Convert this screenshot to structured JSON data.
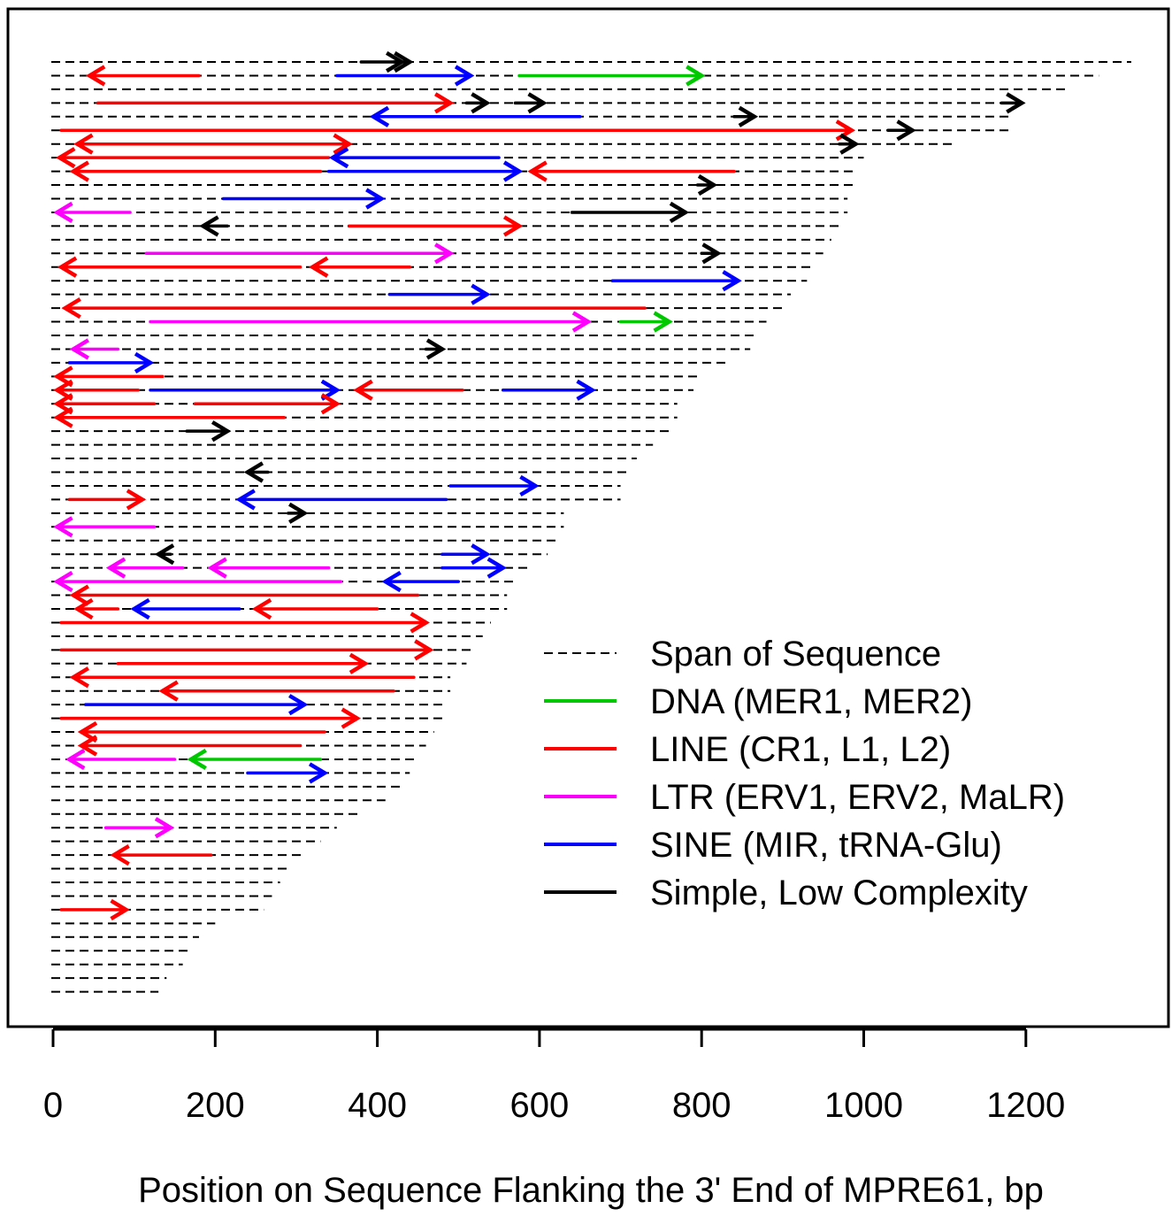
{
  "chart_data": {
    "type": "line",
    "title": "",
    "xlabel": "Position on Sequence Flanking the 3' End of MPRE61, bp",
    "ylabel": "",
    "xlim": [
      -5,
      1375
    ],
    "x_ticks": [
      0,
      200,
      400,
      600,
      800,
      1000,
      1200
    ],
    "grid": false,
    "legend_position": "right",
    "colors": {
      "DNA": "#00c800",
      "LINE": "#ff0000",
      "LTR": "#ff00ff",
      "SINE": "#0000ff",
      "Simple": "#000000",
      "span": "#000000"
    },
    "legend": [
      {
        "key": "span",
        "label": "Span of Sequence",
        "style": "dashed"
      },
      {
        "key": "DNA",
        "label": "DNA (MER1, MER2)",
        "style": "solid"
      },
      {
        "key": "LINE",
        "label": "LINE (CR1, L1, L2)",
        "style": "solid"
      },
      {
        "key": "LTR",
        "label": "LTR (ERV1, ERV2, MaLR)",
        "style": "solid"
      },
      {
        "key": "SINE",
        "label": "SINE (MIR, tRNA-Glu)",
        "style": "solid"
      },
      {
        "key": "Simple",
        "label": "Simple, Low Complexity",
        "style": "solid"
      }
    ],
    "spans": [
      1330,
      1290,
      1250,
      1200,
      1180,
      1180,
      1110,
      1000,
      990,
      990,
      980,
      980,
      970,
      960,
      950,
      940,
      930,
      910,
      900,
      880,
      870,
      860,
      830,
      800,
      790,
      770,
      770,
      760,
      740,
      720,
      710,
      700,
      700,
      630,
      630,
      620,
      610,
      590,
      570,
      560,
      560,
      540,
      530,
      520,
      510,
      490,
      490,
      480,
      480,
      470,
      460,
      450,
      440,
      430,
      410,
      380,
      350,
      330,
      310,
      290,
      280,
      270,
      260,
      200,
      180,
      170,
      160,
      140,
      130
    ],
    "elements": [
      {
        "row": 1,
        "class": "Simple",
        "start": 380,
        "end": 430,
        "dir": "+"
      },
      {
        "row": 1,
        "class": "Simple",
        "start": 420,
        "end": 440,
        "dir": "+"
      },
      {
        "row": 2,
        "class": "LINE",
        "start": 180,
        "end": 45,
        "dir": "-"
      },
      {
        "row": 2,
        "class": "SINE",
        "start": 350,
        "end": 515,
        "dir": "+"
      },
      {
        "row": 2,
        "class": "DNA",
        "start": 575,
        "end": 800,
        "dir": "+"
      },
      {
        "row": 4,
        "class": "LINE",
        "start": 55,
        "end": 490,
        "dir": "+"
      },
      {
        "row": 4,
        "class": "Simple",
        "start": 510,
        "end": 535,
        "dir": "+"
      },
      {
        "row": 4,
        "class": "Simple",
        "start": 570,
        "end": 605,
        "dir": "+"
      },
      {
        "row": 4,
        "class": "Simple",
        "start": 1170,
        "end": 1195,
        "dir": "+"
      },
      {
        "row": 5,
        "class": "SINE",
        "start": 650,
        "end": 395,
        "dir": "-"
      },
      {
        "row": 5,
        "class": "Simple",
        "start": 840,
        "end": 865,
        "dir": "+"
      },
      {
        "row": 6,
        "class": "LINE",
        "start": 10,
        "end": 985,
        "dir": "+"
      },
      {
        "row": 6,
        "class": "Simple",
        "start": 1030,
        "end": 1060,
        "dir": "+"
      },
      {
        "row": 7,
        "class": "LINE",
        "start": 290,
        "end": 30,
        "dir": "-"
      },
      {
        "row": 7,
        "class": "LINE",
        "start": 280,
        "end": 365,
        "dir": "+"
      },
      {
        "row": 7,
        "class": "Simple",
        "start": 970,
        "end": 990,
        "dir": "+"
      },
      {
        "row": 8,
        "class": "LINE",
        "start": 340,
        "end": 8,
        "dir": "-"
      },
      {
        "row": 8,
        "class": "SINE",
        "start": 550,
        "end": 345,
        "dir": "-"
      },
      {
        "row": 9,
        "class": "LINE",
        "start": 330,
        "end": 25,
        "dir": "-"
      },
      {
        "row": 9,
        "class": "SINE",
        "start": 340,
        "end": 575,
        "dir": "+"
      },
      {
        "row": 9,
        "class": "LINE",
        "start": 840,
        "end": 590,
        "dir": "-"
      },
      {
        "row": 10,
        "class": "Simple",
        "start": 795,
        "end": 815,
        "dir": "+"
      },
      {
        "row": 11,
        "class": "SINE",
        "start": 210,
        "end": 405,
        "dir": "+"
      },
      {
        "row": 12,
        "class": "LTR",
        "start": 95,
        "end": 5,
        "dir": "-"
      },
      {
        "row": 12,
        "class": "Simple",
        "start": 640,
        "end": 780,
        "dir": "+"
      },
      {
        "row": 13,
        "class": "Simple",
        "start": 215,
        "end": 185,
        "dir": "-"
      },
      {
        "row": 13,
        "class": "LINE",
        "start": 365,
        "end": 575,
        "dir": "+"
      },
      {
        "row": 15,
        "class": "LTR",
        "start": 115,
        "end": 490,
        "dir": "+"
      },
      {
        "row": 15,
        "class": "Simple",
        "start": 800,
        "end": 820,
        "dir": "+"
      },
      {
        "row": 16,
        "class": "LINE",
        "start": 305,
        "end": 10,
        "dir": "-"
      },
      {
        "row": 16,
        "class": "LINE",
        "start": 440,
        "end": 320,
        "dir": "-"
      },
      {
        "row": 17,
        "class": "SINE",
        "start": 690,
        "end": 845,
        "dir": "+"
      },
      {
        "row": 18,
        "class": "SINE",
        "start": 415,
        "end": 535,
        "dir": "+"
      },
      {
        "row": 19,
        "class": "LINE",
        "start": 730,
        "end": 15,
        "dir": "-"
      },
      {
        "row": 20,
        "class": "LTR",
        "start": 120,
        "end": 660,
        "dir": "+"
      },
      {
        "row": 20,
        "class": "DNA",
        "start": 700,
        "end": 760,
        "dir": "+"
      },
      {
        "row": 22,
        "class": "LTR",
        "start": 80,
        "end": 25,
        "dir": "-"
      },
      {
        "row": 22,
        "class": "Simple",
        "start": 460,
        "end": 480,
        "dir": "+"
      },
      {
        "row": 23,
        "class": "SINE",
        "start": 20,
        "end": 120,
        "dir": "+"
      },
      {
        "row": 24,
        "class": "LINE",
        "start": 135,
        "end": 5,
        "dir": "-"
      },
      {
        "row": 25,
        "class": "LINE",
        "start": 105,
        "end": 5,
        "dir": "-"
      },
      {
        "row": 25,
        "class": "SINE",
        "start": 120,
        "end": 350,
        "dir": "+"
      },
      {
        "row": 25,
        "class": "LINE",
        "start": 505,
        "end": 375,
        "dir": "-"
      },
      {
        "row": 25,
        "class": "SINE",
        "start": 555,
        "end": 665,
        "dir": "+"
      },
      {
        "row": 26,
        "class": "LINE",
        "start": 125,
        "end": 5,
        "dir": "-"
      },
      {
        "row": 26,
        "class": "LINE",
        "start": 175,
        "end": 350,
        "dir": "+"
      },
      {
        "row": 27,
        "class": "LINE",
        "start": 285,
        "end": 5,
        "dir": "-"
      },
      {
        "row": 28,
        "class": "Simple",
        "start": 165,
        "end": 215,
        "dir": "+"
      },
      {
        "row": 31,
        "class": "Simple",
        "start": 265,
        "end": 240,
        "dir": "-"
      },
      {
        "row": 32,
        "class": "SINE",
        "start": 490,
        "end": 595,
        "dir": "+"
      },
      {
        "row": 33,
        "class": "LINE",
        "start": 20,
        "end": 110,
        "dir": "+"
      },
      {
        "row": 33,
        "class": "SINE",
        "start": 485,
        "end": 230,
        "dir": "-"
      },
      {
        "row": 34,
        "class": "Simple",
        "start": 290,
        "end": 310,
        "dir": "+"
      },
      {
        "row": 35,
        "class": "LTR",
        "start": 125,
        "end": 5,
        "dir": "-"
      },
      {
        "row": 37,
        "class": "Simple",
        "start": 145,
        "end": 130,
        "dir": "-"
      },
      {
        "row": 37,
        "class": "SINE",
        "start": 480,
        "end": 535,
        "dir": "+"
      },
      {
        "row": 38,
        "class": "LTR",
        "start": 160,
        "end": 70,
        "dir": "-"
      },
      {
        "row": 38,
        "class": "LTR",
        "start": 340,
        "end": 195,
        "dir": "-"
      },
      {
        "row": 38,
        "class": "SINE",
        "start": 480,
        "end": 555,
        "dir": "+"
      },
      {
        "row": 39,
        "class": "LTR",
        "start": 355,
        "end": 5,
        "dir": "-"
      },
      {
        "row": 39,
        "class": "SINE",
        "start": 500,
        "end": 410,
        "dir": "-"
      },
      {
        "row": 40,
        "class": "LINE",
        "start": 450,
        "end": 25,
        "dir": "-"
      },
      {
        "row": 41,
        "class": "LINE",
        "start": 80,
        "end": 30,
        "dir": "-"
      },
      {
        "row": 41,
        "class": "SINE",
        "start": 230,
        "end": 100,
        "dir": "-"
      },
      {
        "row": 41,
        "class": "LINE",
        "start": 400,
        "end": 250,
        "dir": "-"
      },
      {
        "row": 42,
        "class": "LINE",
        "start": 10,
        "end": 460,
        "dir": "+"
      },
      {
        "row": 44,
        "class": "LINE",
        "start": 10,
        "end": 465,
        "dir": "+"
      },
      {
        "row": 45,
        "class": "LINE",
        "start": 80,
        "end": 385,
        "dir": "+"
      },
      {
        "row": 46,
        "class": "LINE",
        "start": 445,
        "end": 25,
        "dir": "-"
      },
      {
        "row": 47,
        "class": "LINE",
        "start": 420,
        "end": 135,
        "dir": "-"
      },
      {
        "row": 48,
        "class": "SINE",
        "start": 40,
        "end": 310,
        "dir": "+"
      },
      {
        "row": 49,
        "class": "LINE",
        "start": 10,
        "end": 375,
        "dir": "+"
      },
      {
        "row": 50,
        "class": "LINE",
        "start": 335,
        "end": 35,
        "dir": "-"
      },
      {
        "row": 51,
        "class": "LINE",
        "start": 305,
        "end": 35,
        "dir": "-"
      },
      {
        "row": 52,
        "class": "LTR",
        "start": 150,
        "end": 20,
        "dir": "-"
      },
      {
        "row": 52,
        "class": "DNA",
        "start": 330,
        "end": 170,
        "dir": "-"
      },
      {
        "row": 53,
        "class": "SINE",
        "start": 240,
        "end": 335,
        "dir": "+"
      },
      {
        "row": 57,
        "class": "LTR",
        "start": 65,
        "end": 145,
        "dir": "+"
      },
      {
        "row": 59,
        "class": "LINE",
        "start": 195,
        "end": 75,
        "dir": "-"
      },
      {
        "row": 63,
        "class": "LINE",
        "start": 10,
        "end": 90,
        "dir": "+"
      }
    ]
  }
}
